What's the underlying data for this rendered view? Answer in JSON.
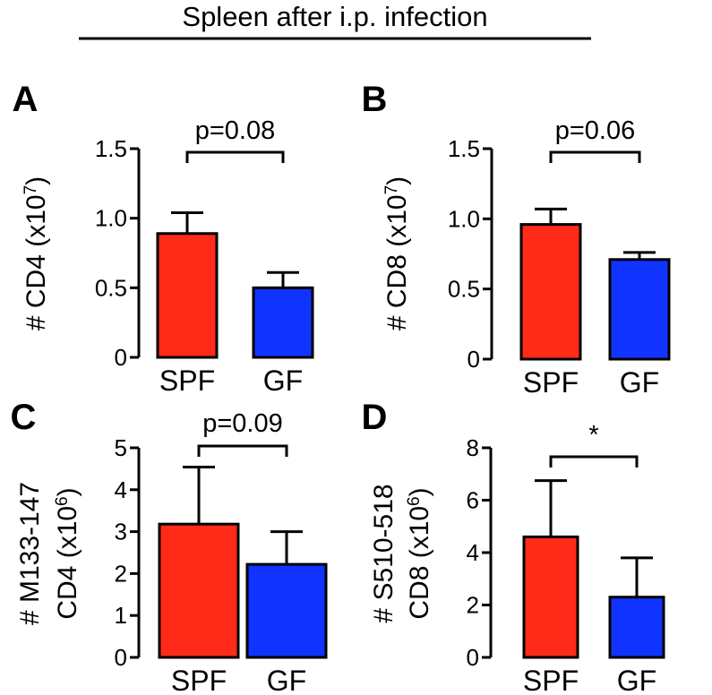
{
  "figure": {
    "title": "Spleen after i.p. infection"
  },
  "colors": {
    "SPF": "#ff2a18",
    "GF": "#1133ff",
    "axis": "#000000"
  },
  "chart_data": [
    {
      "panel": "A",
      "type": "bar",
      "categories": [
        "SPF",
        "GF"
      ],
      "values": [
        0.89,
        0.5
      ],
      "errors": [
        0.15,
        0.11
      ],
      "ylabel_main": "# CD4 (x10",
      "ylabel_sup": "7",
      "ylabel_end": ")",
      "ylim": [
        0,
        1.5
      ],
      "yticks": [
        "0",
        "0.5",
        "1.0",
        "1.5"
      ],
      "ytick_values": [
        0,
        0.5,
        1.0,
        1.5
      ],
      "annotation": "p=0.08"
    },
    {
      "panel": "B",
      "type": "bar",
      "categories": [
        "SPF",
        "GF"
      ],
      "values": [
        0.96,
        0.71
      ],
      "errors": [
        0.11,
        0.05
      ],
      "ylabel_main": "# CD8 (x10",
      "ylabel_sup": "7",
      "ylabel_end": ")",
      "ylim": [
        0,
        1.5
      ],
      "yticks": [
        "0",
        "0.5",
        "1.0",
        "1.5"
      ],
      "ytick_values": [
        0,
        0.5,
        1.0,
        1.5
      ],
      "annotation": "p=0.06"
    },
    {
      "panel": "C",
      "type": "bar",
      "categories": [
        "SPF",
        "GF"
      ],
      "values": [
        3.18,
        2.22
      ],
      "errors": [
        1.36,
        0.78
      ],
      "ylabel_line1": "# M133-147",
      "ylabel_main": "CD4 (x10",
      "ylabel_sup": "6",
      "ylabel_end": ")",
      "ylim": [
        0,
        5
      ],
      "yticks": [
        "0",
        "1",
        "2",
        "3",
        "4",
        "5"
      ],
      "ytick_values": [
        0,
        1,
        2,
        3,
        4,
        5
      ],
      "annotation": "p=0.09"
    },
    {
      "panel": "D",
      "type": "bar",
      "categories": [
        "SPF",
        "GF"
      ],
      "values": [
        4.6,
        2.3
      ],
      "errors": [
        2.15,
        1.5
      ],
      "ylabel_line1": "# S510-518",
      "ylabel_main": "CD8 (x10",
      "ylabel_sup": "6",
      "ylabel_end": ")",
      "ylim": [
        0,
        8
      ],
      "yticks": [
        "0",
        "2",
        "4",
        "6",
        "8"
      ],
      "ytick_values": [
        0,
        2,
        4,
        6,
        8
      ],
      "annotation": "*"
    }
  ]
}
